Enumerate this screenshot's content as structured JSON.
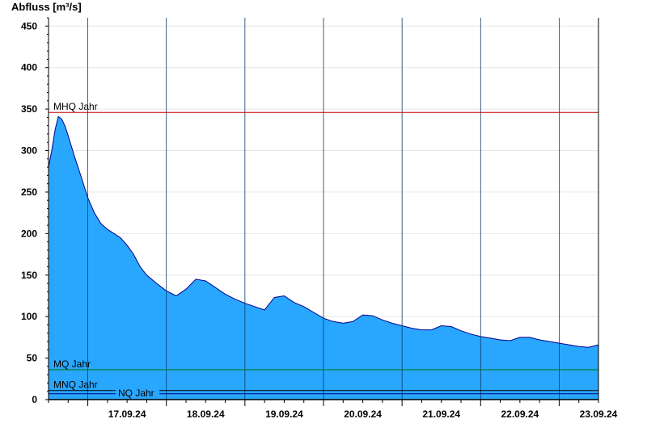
{
  "chart_data": {
    "type": "area",
    "ylabel": "Abfluss [m³/s]",
    "ylim": [
      0,
      460
    ],
    "yticks": [
      0,
      50,
      100,
      150,
      200,
      250,
      300,
      350,
      400,
      450
    ],
    "xlim": [
      "16.09.24 12:00",
      "23.09.24 12:00"
    ],
    "xtick_labels": [
      "17.09.24",
      "18.09.24",
      "19.09.24",
      "20.09.24",
      "21.09.24",
      "22.09.24",
      "23.09.24"
    ],
    "grid": true,
    "fill_color": "#29a7ff",
    "line_color": "#00008b",
    "series": [
      {
        "x": [
          "16.09.24 12:00",
          "16.09.24 13:00",
          "16.09.24 14:00",
          "16.09.24 15:00",
          "16.09.24 16:00",
          "16.09.24 17:00",
          "16.09.24 18:00",
          "16.09.24 19:00",
          "16.09.24 20:00",
          "16.09.24 22:00",
          "17.09.24 00:00",
          "17.09.24 02:00",
          "17.09.24 04:00",
          "17.09.24 06:00",
          "17.09.24 08:00",
          "17.09.24 10:00",
          "17.09.24 12:00",
          "17.09.24 14:00",
          "17.09.24 16:00",
          "17.09.24 18:00",
          "17.09.24 21:00",
          "18.09.24 00:00",
          "18.09.24 03:00",
          "18.09.24 06:00",
          "18.09.24 09:00",
          "18.09.24 12:00",
          "18.09.24 15:00",
          "18.09.24 18:00",
          "18.09.24 21:00",
          "19.09.24 00:00",
          "19.09.24 03:00",
          "19.09.24 06:00",
          "19.09.24 09:00",
          "19.09.24 12:00",
          "19.09.24 15:00",
          "19.09.24 18:00",
          "19.09.24 21:00",
          "20.09.24 00:00",
          "20.09.24 03:00",
          "20.09.24 06:00",
          "20.09.24 09:00",
          "20.09.24 12:00",
          "20.09.24 15:00",
          "20.09.24 18:00",
          "20.09.24 21:00",
          "21.09.24 00:00",
          "21.09.24 03:00",
          "21.09.24 06:00",
          "21.09.24 09:00",
          "21.09.24 12:00",
          "21.09.24 15:00",
          "21.09.24 18:00",
          "21.09.24 21:00",
          "22.09.24 00:00",
          "22.09.24 03:00",
          "22.09.24 06:00",
          "22.09.24 09:00",
          "22.09.24 12:00",
          "22.09.24 15:00",
          "22.09.24 18:00",
          "22.09.24 21:00",
          "23.09.24 00:00",
          "23.09.24 03:00",
          "23.09.24 06:00",
          "23.09.24 09:00",
          "23.09.24 12:00"
        ],
        "y": [
          280,
          300,
          325,
          341,
          338,
          330,
          318,
          305,
          292,
          268,
          243,
          225,
          212,
          205,
          200,
          195,
          186,
          175,
          160,
          150,
          140,
          131,
          125,
          133,
          145,
          143,
          135,
          127,
          121,
          116,
          112,
          108,
          123,
          125,
          117,
          112,
          105,
          98,
          94,
          92,
          94,
          102,
          101,
          96,
          92,
          89,
          86,
          84,
          84,
          89,
          88,
          83,
          79,
          76,
          74,
          72,
          71,
          75,
          75,
          72,
          70,
          68,
          66,
          64,
          63,
          66
        ]
      }
    ],
    "reference_lines": [
      {
        "label": "MHQ Jahr",
        "value": 346,
        "color": "#cc0000"
      },
      {
        "label": "MQ Jahr",
        "value": 36,
        "color": "#007700"
      },
      {
        "label": "MNQ Jahr",
        "value": 11,
        "color": "#000000"
      },
      {
        "label": "NQ Jahr",
        "value": 7,
        "color": "#000080"
      }
    ]
  }
}
